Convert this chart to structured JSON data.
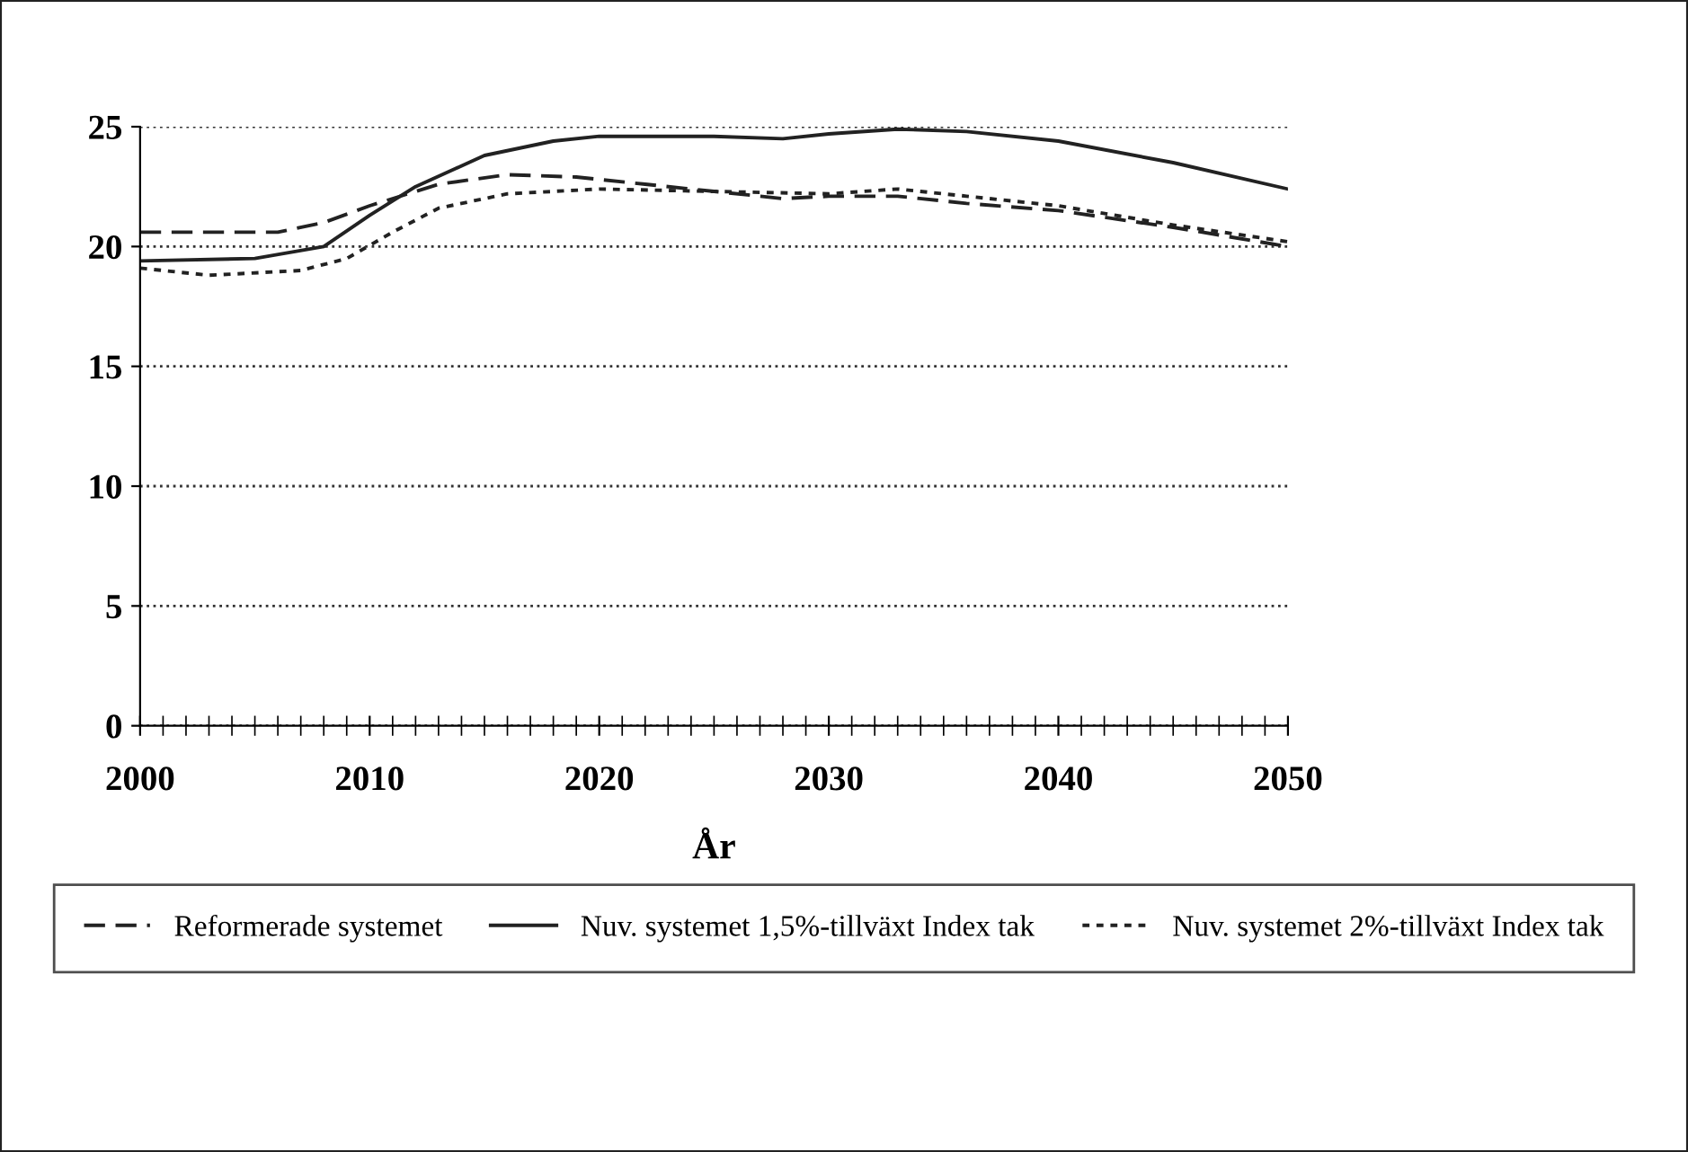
{
  "chart_data": {
    "type": "line",
    "xlabel": "År",
    "xlim": [
      2000,
      2050
    ],
    "xticks": [
      2000,
      2010,
      2020,
      2030,
      2040,
      2050
    ],
    "ylim": [
      0,
      25
    ],
    "yticks": [
      0,
      5,
      10,
      15,
      20,
      25
    ],
    "grid": "y",
    "legend": "bottom",
    "marker": "none",
    "series": [
      {
        "name": "Reformerade systemet",
        "color": "#222222",
        "line_style": "dashed",
        "x": [
          2000,
          2006,
          2008,
          2010,
          2013,
          2016,
          2019,
          2022,
          2025,
          2028,
          2030,
          2033,
          2036,
          2040,
          2045,
          2050
        ],
        "values": [
          20.6,
          20.6,
          21.0,
          21.7,
          22.6,
          23.0,
          22.9,
          22.6,
          22.3,
          22.0,
          22.1,
          22.1,
          21.8,
          21.5,
          20.8,
          20.0
        ]
      },
      {
        "name": "Nuv. systemet 1,5%-tillväxt Index tak",
        "color": "#222222",
        "line_style": "solid",
        "x": [
          2000,
          2005,
          2008,
          2010,
          2012,
          2015,
          2018,
          2020,
          2025,
          2028,
          2030,
          2033,
          2036,
          2040,
          2045,
          2050
        ],
        "values": [
          19.4,
          19.5,
          20.0,
          21.3,
          22.5,
          23.8,
          24.4,
          24.6,
          24.6,
          24.5,
          24.7,
          24.9,
          24.8,
          24.4,
          23.5,
          22.4
        ]
      },
      {
        "name": "Nuv. systemet 2%-tillväxt Index tak",
        "color": "#222222",
        "line_style": "dotted",
        "x": [
          2000,
          2003,
          2007,
          2009,
          2011,
          2013,
          2016,
          2020,
          2025,
          2030,
          2033,
          2036,
          2040,
          2045,
          2050
        ],
        "values": [
          19.1,
          18.8,
          19.0,
          19.5,
          20.6,
          21.6,
          22.2,
          22.4,
          22.3,
          22.2,
          22.4,
          22.1,
          21.7,
          20.9,
          20.2
        ]
      }
    ]
  }
}
